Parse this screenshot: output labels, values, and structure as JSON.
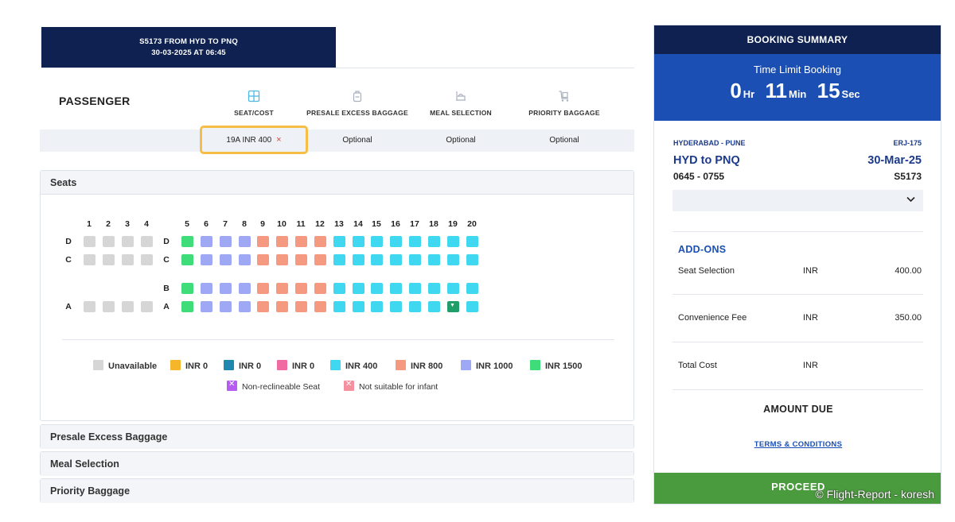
{
  "flight_tab": {
    "line1": "S5173 FROM HYD TO PNQ",
    "line2": "30-03-2025 AT 06:45"
  },
  "passenger_label": "PASSENGER",
  "steps": [
    {
      "label": "SEAT/COST",
      "icon": "seat-grid-icon",
      "value": "19A INR 400"
    },
    {
      "label": "PRESALE EXCESS BAGGAGE",
      "icon": "baggage-icon",
      "value": "Optional"
    },
    {
      "label": "MEAL SELECTION",
      "icon": "meal-icon",
      "value": "Optional"
    },
    {
      "label": "PRIORITY BAGGAGE",
      "icon": "trolley-icon",
      "value": "Optional"
    }
  ],
  "remove_symbol": "×",
  "seats": {
    "title": "Seats",
    "columns": [
      "1",
      "2",
      "3",
      "4",
      "5",
      "6",
      "7",
      "8",
      "9",
      "10",
      "11",
      "12",
      "13",
      "14",
      "15",
      "16",
      "17",
      "18",
      "19",
      "20"
    ],
    "row_labels_left": [
      "D",
      "C",
      "A"
    ],
    "row_labels_mid": [
      "D",
      "C",
      "B",
      "A"
    ],
    "selected_seat": "19A"
  },
  "legend": [
    {
      "label": "Unavailable",
      "color": "#d6d6d6"
    },
    {
      "label": "INR 0",
      "color": "#f5b62c"
    },
    {
      "label": "INR 0",
      "color": "#1f88b0"
    },
    {
      "label": "INR 0",
      "color": "#f06ba2"
    },
    {
      "label": "INR 400",
      "color": "#3fd8f0"
    },
    {
      "label": "INR 800",
      "color": "#f59a80"
    },
    {
      "label": "INR 1000",
      "color": "#9fa8f5"
    },
    {
      "label": "INR 1500",
      "color": "#3fdc7a"
    }
  ],
  "legend_extra": [
    {
      "label": "Non-reclineable Seat",
      "color": "#b65cf0"
    },
    {
      "label": "Not suitable for infant",
      "color": "#f5909e"
    }
  ],
  "sections": [
    "Presale Excess Baggage",
    "Meal Selection",
    "Priority Baggage"
  ],
  "summary": {
    "title": "BOOKING SUMMARY",
    "timer_label": "Time Limit Booking",
    "hours": "0",
    "hours_unit": "Hr",
    "minutes": "11",
    "minutes_unit": "Min",
    "seconds": "15",
    "seconds_unit": "Sec",
    "route": "HYDERABAD - PUNE",
    "aircraft": "ERJ-175",
    "sector": "HYD to PNQ",
    "date": "30-Mar-25",
    "times": "0645 - 0755",
    "flight_no": "S5173",
    "addons_title": "ADD-ONS",
    "lines": [
      {
        "label": "Seat Selection",
        "currency": "INR",
        "amount": "400.00"
      },
      {
        "label": "Convenience Fee",
        "currency": "INR",
        "amount": "350.00"
      },
      {
        "label": "Total Cost",
        "currency": "INR",
        "amount": ""
      }
    ],
    "amount_due": "AMOUNT DUE",
    "terms": "TERMS & CONDITIONS",
    "proceed": "PROCEED"
  },
  "watermark": "© Flight-Report - koresh",
  "colors": {
    "navy": "#0e2150",
    "blue": "#1b4fb3",
    "green": "#4a9b3d",
    "highlight": "#f6be46"
  }
}
